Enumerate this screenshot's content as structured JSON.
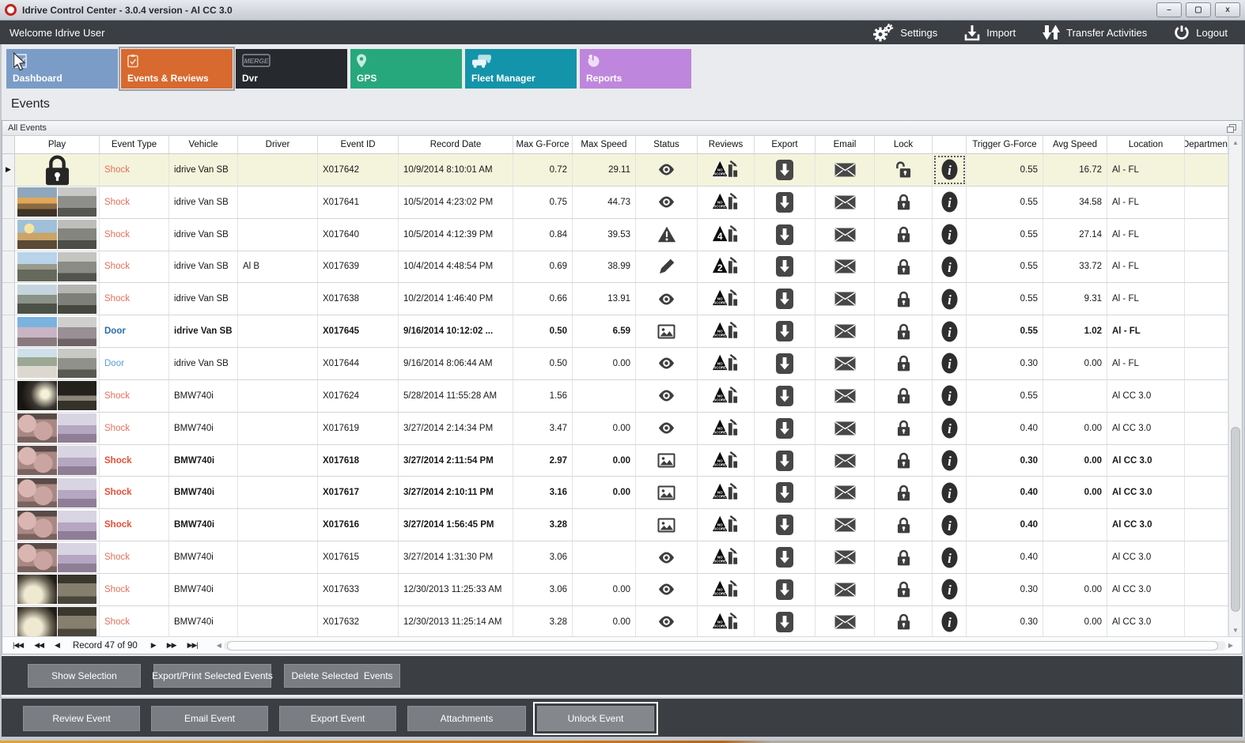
{
  "window": {
    "title": "Idrive Control Center - 3.0.4 version - Al CC 3.0",
    "minimize": "–",
    "maximize": "▢",
    "close": "x"
  },
  "topbar": {
    "welcome": "Welcome Idrive User",
    "actions": [
      {
        "label": "Settings",
        "icon": "gears"
      },
      {
        "label": "Import",
        "icon": "import"
      },
      {
        "label": "Transfer Activities",
        "icon": "transfer"
      },
      {
        "label": "Logout",
        "icon": "power"
      }
    ]
  },
  "tabs": [
    {
      "label": "Dashboard",
      "color": "#7b9cc7",
      "icon": "dashboard",
      "selected": false
    },
    {
      "label": "Events & Reviews",
      "color": "#d8692f",
      "icon": "events",
      "selected": true
    },
    {
      "label": "Dvr",
      "color": "#26292e",
      "icon": "dvr",
      "selected": false
    },
    {
      "label": "GPS",
      "color": "#27a87c",
      "icon": "gps",
      "selected": false
    },
    {
      "label": "Fleet Manager",
      "color": "#1494aa",
      "icon": "fleet",
      "selected": false
    },
    {
      "label": "Reports",
      "color": "#bf86dd",
      "icon": "reports",
      "selected": false
    }
  ],
  "page_title": "Events",
  "panel": {
    "title": "All Events"
  },
  "grid": {
    "columns": [
      "Play",
      "Event Type",
      "Vehicle",
      "Driver",
      "Event ID",
      "Record Date",
      "Max G-Force",
      "Max Speed",
      "Status",
      "Reviews",
      "Export",
      "Email",
      "Lock",
      "",
      "Trigger G-Force",
      "Avg Speed",
      "Location",
      "Department"
    ],
    "rows": [
      {
        "selected": true,
        "bold": false,
        "play": "locked",
        "thumb": null,
        "type": "Shock",
        "vehicle": "idrive Van SB",
        "driver": "",
        "event_id": "X017642",
        "record_date": "10/9/2014 8:10:01 AM",
        "max_g": "0.72",
        "max_speed": "29.11",
        "status": "eye",
        "review": "NO SCORE",
        "lock": "unlocked",
        "trigger_g": "0.55",
        "avg_speed": "16.72",
        "location": "Al - FL",
        "department": ""
      },
      {
        "selected": false,
        "bold": false,
        "play": "thumb",
        "thumb": "t1",
        "type": "Shock",
        "vehicle": "idrive Van SB",
        "driver": "",
        "event_id": "X017641",
        "record_date": "10/5/2014 4:23:02 PM",
        "max_g": "0.75",
        "max_speed": "44.73",
        "status": "eye",
        "review": "NO SCORE",
        "lock": "locked",
        "trigger_g": "0.55",
        "avg_speed": "34.58",
        "location": "Al - FL",
        "department": ""
      },
      {
        "selected": false,
        "bold": false,
        "play": "thumb",
        "thumb": "t2",
        "type": "Shock",
        "vehicle": "idrive Van SB",
        "driver": "",
        "event_id": "X017640",
        "record_date": "10/5/2014 4:12:39 PM",
        "max_g": "0.84",
        "max_speed": "39.53",
        "status": "warning",
        "review": "4",
        "lock": "locked",
        "trigger_g": "0.55",
        "avg_speed": "27.14",
        "location": "Al - FL",
        "department": ""
      },
      {
        "selected": false,
        "bold": false,
        "play": "thumb",
        "thumb": "t3",
        "type": "Shock",
        "vehicle": "idrive Van SB",
        "driver": "Al B",
        "event_id": "X017639",
        "record_date": "10/4/2014 4:48:54 PM",
        "max_g": "0.69",
        "max_speed": "38.99",
        "status": "pencil",
        "review": "2",
        "lock": "locked",
        "trigger_g": "0.55",
        "avg_speed": "33.72",
        "location": "Al - FL",
        "department": ""
      },
      {
        "selected": false,
        "bold": false,
        "play": "thumb",
        "thumb": "t4",
        "type": "Shock",
        "vehicle": "idrive Van SB",
        "driver": "",
        "event_id": "X017638",
        "record_date": "10/2/2014 1:46:40 PM",
        "max_g": "0.66",
        "max_speed": "13.91",
        "status": "eye",
        "review": "NO SCORE",
        "lock": "locked",
        "trigger_g": "0.55",
        "avg_speed": "9.31",
        "location": "Al - FL",
        "department": ""
      },
      {
        "selected": false,
        "bold": true,
        "play": "thumb",
        "thumb": "t5",
        "type": "Door",
        "vehicle": "idrive Van SB",
        "driver": "",
        "event_id": "X017645",
        "record_date": "9/16/2014 10:12:02 ...",
        "max_g": "0.50",
        "max_speed": "6.59",
        "status": "image",
        "review": "NO SCORE",
        "lock": "locked",
        "trigger_g": "0.55",
        "avg_speed": "1.02",
        "location": "Al - FL",
        "department": ""
      },
      {
        "selected": false,
        "bold": false,
        "play": "thumb",
        "thumb": "t6",
        "type": "Door",
        "vehicle": "idrive Van SB",
        "driver": "",
        "event_id": "X017644",
        "record_date": "9/16/2014 8:06:44 AM",
        "max_g": "0.50",
        "max_speed": "0.00",
        "status": "eye",
        "review": "NO SCORE",
        "lock": "locked",
        "trigger_g": "0.30",
        "avg_speed": "0.00",
        "location": "Al - FL",
        "department": ""
      },
      {
        "selected": false,
        "bold": false,
        "play": "thumb",
        "thumb": "t7",
        "type": "Shock",
        "vehicle": "BMW740i",
        "driver": "",
        "event_id": "X017624",
        "record_date": "5/28/2014 11:55:28 AM",
        "max_g": "1.56",
        "max_speed": "",
        "status": "eye",
        "review": "NO SCORE",
        "lock": "locked",
        "trigger_g": "0.55",
        "avg_speed": "",
        "location": "Al CC 3.0",
        "department": ""
      },
      {
        "selected": false,
        "bold": false,
        "play": "thumb",
        "thumb": "t8",
        "type": "Shock",
        "vehicle": "BMW740i",
        "driver": "",
        "event_id": "X017619",
        "record_date": "3/27/2014 2:14:34 PM",
        "max_g": "3.47",
        "max_speed": "0.00",
        "status": "eye",
        "review": "NO SCORE",
        "lock": "locked",
        "trigger_g": "0.40",
        "avg_speed": "0.00",
        "location": "Al CC 3.0",
        "department": ""
      },
      {
        "selected": false,
        "bold": true,
        "play": "thumb",
        "thumb": "t8",
        "type": "Shock",
        "vehicle": "BMW740i",
        "driver": "",
        "event_id": "X017618",
        "record_date": "3/27/2014 2:11:54 PM",
        "max_g": "2.97",
        "max_speed": "0.00",
        "status": "image",
        "review": "NO SCORE",
        "lock": "locked",
        "trigger_g": "0.30",
        "avg_speed": "0.00",
        "location": "Al CC 3.0",
        "department": ""
      },
      {
        "selected": false,
        "bold": true,
        "play": "thumb",
        "thumb": "t8",
        "type": "Shock",
        "vehicle": "BMW740i",
        "driver": "",
        "event_id": "X017617",
        "record_date": "3/27/2014 2:10:11 PM",
        "max_g": "3.16",
        "max_speed": "0.00",
        "status": "image",
        "review": "NO SCORE",
        "lock": "locked",
        "trigger_g": "0.40",
        "avg_speed": "0.00",
        "location": "Al CC 3.0",
        "department": ""
      },
      {
        "selected": false,
        "bold": true,
        "play": "thumb",
        "thumb": "t8",
        "type": "Shock",
        "vehicle": "BMW740i",
        "driver": "",
        "event_id": "X017616",
        "record_date": "3/27/2014 1:56:45 PM",
        "max_g": "3.28",
        "max_speed": "",
        "status": "image",
        "review": "NO SCORE",
        "lock": "locked",
        "trigger_g": "0.40",
        "avg_speed": "",
        "location": "Al CC 3.0",
        "department": ""
      },
      {
        "selected": false,
        "bold": false,
        "play": "thumb",
        "thumb": "t8",
        "type": "Shock",
        "vehicle": "BMW740i",
        "driver": "",
        "event_id": "X017615",
        "record_date": "3/27/2014 1:31:30 PM",
        "max_g": "3.06",
        "max_speed": "",
        "status": "eye",
        "review": "NO SCORE",
        "lock": "locked",
        "trigger_g": "0.40",
        "avg_speed": "",
        "location": "Al CC 3.0",
        "department": ""
      },
      {
        "selected": false,
        "bold": false,
        "play": "thumb",
        "thumb": "t9",
        "type": "Shock",
        "vehicle": "BMW740i",
        "driver": "",
        "event_id": "X017633",
        "record_date": "12/30/2013 11:25:33 AM",
        "max_g": "3.06",
        "max_speed": "0.00",
        "status": "eye",
        "review": "NO SCORE",
        "lock": "locked",
        "trigger_g": "0.30",
        "avg_speed": "0.00",
        "location": "Al CC 3.0",
        "department": ""
      },
      {
        "selected": false,
        "bold": false,
        "play": "thumb",
        "thumb": "t9",
        "type": "Shock",
        "vehicle": "BMW740i",
        "driver": "",
        "event_id": "X017632",
        "record_date": "12/30/2013 11:25:14 AM",
        "max_g": "3.28",
        "max_speed": "0.00",
        "status": "eye",
        "review": "NO SCORE",
        "lock": "locked",
        "trigger_g": "0.30",
        "avg_speed": "0.00",
        "location": "Al CC 3.0",
        "department": ""
      }
    ]
  },
  "navigator": {
    "record_label": "Record 47 of 90"
  },
  "selection_buttons": [
    "Show Selection",
    "Export/Print Selected Events",
    "Delete Selected  Events"
  ],
  "event_buttons": [
    "Review Event",
    "Email Event",
    "Export Event",
    "Attachments",
    "Unlock Event"
  ],
  "colors": {
    "accent_orange": "#d8692f",
    "dark_bar": "#3b3e42",
    "selected_row": "#f4f4dc",
    "shock_text": "#e2705c",
    "door_text": "#53a0d6"
  }
}
